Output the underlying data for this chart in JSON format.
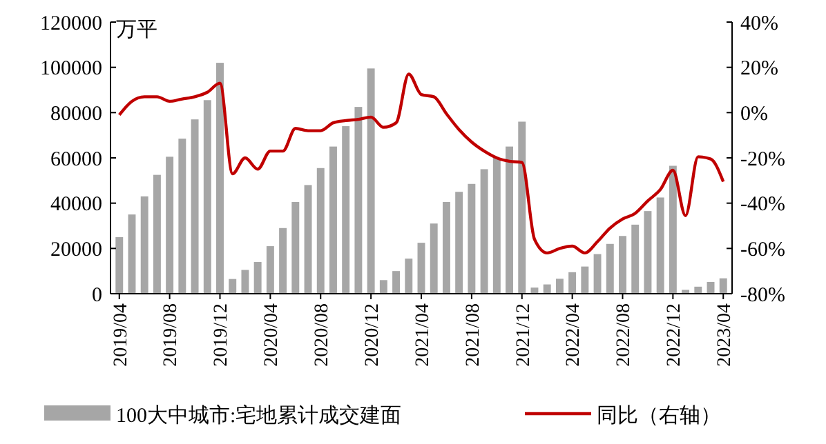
{
  "chart_data": {
    "type": "bar",
    "ylabel": "万平",
    "categories": [
      "2019/04",
      null,
      null,
      null,
      "2019/08",
      null,
      null,
      null,
      "2019/12",
      null,
      null,
      null,
      "2020/04",
      null,
      null,
      null,
      "2020/08",
      null,
      null,
      null,
      "2020/12",
      null,
      null,
      null,
      "2021/04",
      null,
      null,
      null,
      "2021/08",
      null,
      null,
      null,
      "2021/12",
      null,
      null,
      null,
      "2022/04",
      null,
      null,
      null,
      "2022/08",
      null,
      null,
      null,
      "2022/12",
      null,
      null,
      null,
      "2023/04"
    ],
    "series": [
      {
        "name": "100大中城市:宅地累计成交建面",
        "color": "#a6a6a6",
        "values": [
          25000,
          35000,
          43000,
          52500,
          60500,
          68500,
          77000,
          85500,
          102000,
          6500,
          10500,
          14000,
          21000,
          29000,
          40500,
          48000,
          55500,
          65000,
          74000,
          82500,
          99500,
          6000,
          10000,
          15500,
          22500,
          31000,
          40500,
          45000,
          48500,
          55000,
          60000,
          65000,
          76000,
          2700,
          4100,
          6600,
          9500,
          12000,
          17500,
          22000,
          25500,
          30500,
          36500,
          42500,
          56500,
          1700,
          3100,
          5200,
          6800
        ]
      },
      {
        "name": "同比（右轴）",
        "type": "line",
        "axis": "y2",
        "color": "#c00000",
        "values": [
          -1,
          5,
          7,
          7,
          5,
          6,
          7,
          9,
          13,
          -27,
          -20,
          -25,
          -17,
          -17,
          -7,
          -8,
          -8,
          -4.5,
          -3.5,
          -3,
          -2,
          -6.5,
          -4.5,
          17,
          8,
          7,
          -0.5,
          -7.5,
          -13,
          -17,
          -20,
          -21.5,
          -22,
          -56,
          -62,
          -60,
          -59,
          -62,
          -57,
          -51,
          -47,
          -44.5,
          -39,
          -34,
          -25.5,
          -45.5,
          -19.5,
          -20.5,
          -30.5
        ]
      }
    ],
    "ylim": [
      0,
      120000
    ],
    "yticks": [
      0,
      20000,
      40000,
      60000,
      80000,
      100000,
      120000
    ],
    "y2lim": [
      -80,
      40
    ],
    "y2ticks": [
      {
        "value": -80,
        "label": "-80%"
      },
      {
        "value": -60,
        "label": "-60%"
      },
      {
        "value": -40,
        "label": "-40%"
      },
      {
        "value": -20,
        "label": "-20%"
      },
      {
        "value": 0,
        "label": "0%"
      },
      {
        "value": 20,
        "label": "20%"
      },
      {
        "value": 40,
        "label": "40%"
      }
    ],
    "legend": "bottom"
  }
}
